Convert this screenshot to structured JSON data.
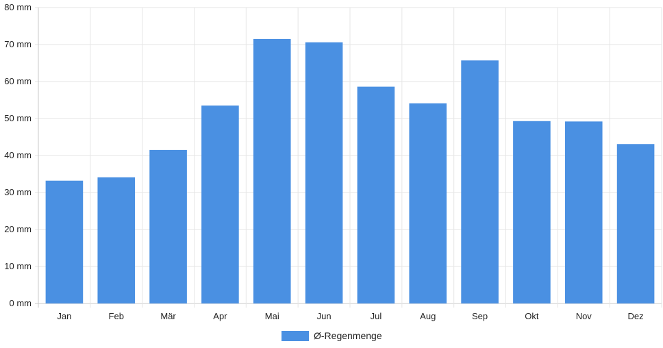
{
  "chart_data": {
    "type": "bar",
    "categories": [
      "Jan",
      "Feb",
      "Mär",
      "Apr",
      "Mai",
      "Jun",
      "Jul",
      "Aug",
      "Sep",
      "Okt",
      "Nov",
      "Dez"
    ],
    "series": [
      {
        "name": "Ø-Regenmenge",
        "values": [
          33.2,
          34.1,
          41.5,
          53.5,
          71.5,
          70.6,
          58.6,
          54.1,
          65.7,
          49.3,
          49.2,
          43.1
        ]
      }
    ],
    "y_unit": "mm",
    "y_ticks": [
      "0 mm",
      "10 mm",
      "20 mm",
      "30 mm",
      "40 mm",
      "50 mm",
      "60 mm",
      "70 mm",
      "80 mm"
    ],
    "ylim": [
      0,
      80
    ],
    "grid": true,
    "legend_position": "bottom",
    "bar_color": "#4a90e2",
    "grid_color": "#e5e5e5"
  }
}
